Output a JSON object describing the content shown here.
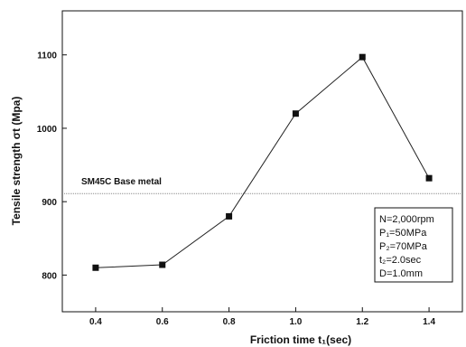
{
  "chart_data": {
    "type": "line",
    "xlabel": "Friction time t₁(sec)",
    "ylabel": "Tensile strength σt (Mpa)",
    "xlim": [
      0.3,
      1.5
    ],
    "ylim": [
      750,
      1160
    ],
    "xticks": [
      "0.4",
      "0.6",
      "0.8",
      "1.0",
      "1.2",
      "1.4"
    ],
    "yticks": [
      "800",
      "900",
      "1000",
      "1100"
    ],
    "x": [
      0.4,
      0.6,
      0.8,
      1.0,
      1.2,
      1.4
    ],
    "series": [
      {
        "name": "",
        "values": [
          810,
          814,
          880,
          1020,
          1097,
          932
        ]
      }
    ],
    "reference_line": {
      "label": "SM45C Base metal",
      "value": 911
    },
    "conditions": [
      "N=2,000rpm",
      "P₁=50MPa",
      "P₂=70MPa",
      "t₂=2.0sec",
      "D=1.0mm"
    ],
    "grid": false,
    "colors": {
      "line": "#222222",
      "marker": "#111111",
      "reference": "#888888"
    }
  }
}
